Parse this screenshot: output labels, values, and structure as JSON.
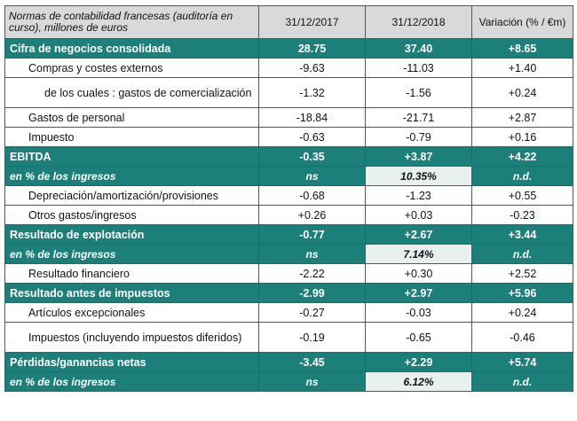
{
  "header": {
    "label": "Normas de contabilidad francesas (auditoría en curso), millones de euros",
    "col1": "31/12/2017",
    "col2": "31/12/2018",
    "col3": "Variación (% / €m)"
  },
  "rows": [
    {
      "label": "Cifra de negocios consolidada",
      "v1": "28.75",
      "v2": "37.40",
      "v3": "+8.65"
    },
    {
      "label": "Compras y costes externos",
      "v1": "-9.63",
      "v2": "-11.03",
      "v3": "+1.40"
    },
    {
      "label": "de los cuales : gastos de comercialización",
      "v1": "-1.32",
      "v2": "-1.56",
      "v3": "+0.24"
    },
    {
      "label": "Gastos de personal",
      "v1": "-18.84",
      "v2": "-21.71",
      "v3": "+2.87"
    },
    {
      "label": "Impuesto",
      "v1": "-0.63",
      "v2": "-0.79",
      "v3": "+0.16"
    },
    {
      "label": "EBITDA",
      "v1": "-0.35",
      "v2": "+3.87",
      "v3": "+4.22"
    },
    {
      "label": "en % de los ingresos",
      "v1": "ns",
      "v2": "10.35%",
      "v3": "n.d."
    },
    {
      "label": "Depreciación/amortización/provisiones",
      "v1": "-0.68",
      "v2": "-1.23",
      "v3": "+0.55"
    },
    {
      "label": "Otros gastos/ingresos",
      "v1": "+0.26",
      "v2": "+0.03",
      "v3": "-0.23"
    },
    {
      "label": "Resultado de explotación",
      "v1": "-0.77",
      "v2": "+2.67",
      "v3": "+3.44"
    },
    {
      "label": "en % de los ingresos",
      "v1": "ns",
      "v2": "7.14%",
      "v3": "n.d."
    },
    {
      "label": "Resultado financiero",
      "v1": "-2.22",
      "v2": "+0.30",
      "v3": "+2.52"
    },
    {
      "label": "Resultado antes de impuestos",
      "v1": "-2.99",
      "v2": "+2.97",
      "v3": "+5.96"
    },
    {
      "label": "Artículos excepcionales",
      "v1": "-0.27",
      "v2": "-0.03",
      "v3": "+0.24"
    },
    {
      "label": "Impuestos (incluyendo impuestos diferidos)",
      "v1": "-0.19",
      "v2": "-0.65",
      "v3": "-0.46"
    },
    {
      "label": "Pérdidas/ganancias netas",
      "v1": "-3.45",
      "v2": "+2.29",
      "v3": "+5.74"
    },
    {
      "label": "en % de los ingresos",
      "v1": "ns",
      "v2": "6.12%",
      "v3": "n.d."
    }
  ],
  "colors": {
    "teal": "#1d7f7a",
    "header_gray": "#d9d9d9",
    "pct_mid": "#e7f0ef"
  }
}
